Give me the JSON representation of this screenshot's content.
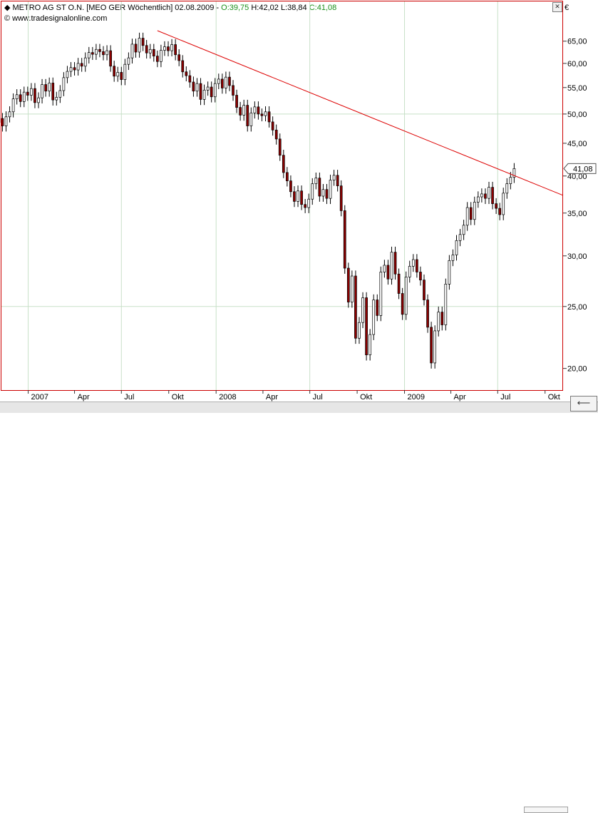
{
  "header": {
    "name_part": "METRO AG ST O.N. [MEO GER  Wöchentlich] 02.08.2009 - ",
    "open": "O:39,75",
    "high": "H:42,02",
    "low": "L:38,84",
    "close": "C:41,08"
  },
  "source": "www.tradesignalonline.com",
  "currency_symbol": "€",
  "last_price_label": "41,08",
  "colors": {
    "frame": "#cc0000",
    "trendline": "#dd0000",
    "grid": "#c8e0c8",
    "bear": "#8b0000",
    "bull": "#ffffff",
    "up_text": "#1a8f1a"
  },
  "chart_data": {
    "type": "candlestick",
    "interval": "weekly",
    "y_scale": "log",
    "ylim": [
      18.5,
      75
    ],
    "y_ticks": [
      20,
      25,
      30,
      35,
      40,
      45,
      50,
      55,
      60,
      65
    ],
    "y_tick_labels": [
      "20,00",
      "25,00",
      "30,00",
      "35,00",
      "40,00",
      "45,00",
      "50,00",
      "55,00",
      "60,00",
      "65,00"
    ],
    "x_ticks": [
      {
        "date": "2007-01-01",
        "label": "2007"
      },
      {
        "date": "2007-04-01",
        "label": "Apr"
      },
      {
        "date": "2007-07-01",
        "label": "Jul"
      },
      {
        "date": "2007-10-01",
        "label": "Okt"
      },
      {
        "date": "2008-01-01",
        "label": "2008"
      },
      {
        "date": "2008-04-01",
        "label": "Apr"
      },
      {
        "date": "2008-07-01",
        "label": "Jul"
      },
      {
        "date": "2008-10-01",
        "label": "Okt"
      },
      {
        "date": "2009-01-01",
        "label": "2009"
      },
      {
        "date": "2009-04-01",
        "label": "Apr"
      },
      {
        "date": "2009-07-01",
        "label": "Jul"
      },
      {
        "date": "2009-10-01",
        "label": "Okt"
      }
    ],
    "xlim": [
      "2006-11-10",
      "2009-11-05"
    ],
    "grid_vertical_at": [
      "2007-01-01",
      "2007-07-01",
      "2008-01-01",
      "2008-07-01",
      "2009-01-01",
      "2009-07-01"
    ],
    "grid_horizontal_at": [
      25,
      50
    ],
    "trendline": [
      {
        "date": "2007-09-09",
        "price": 67.5
      },
      {
        "date": "2009-11-05",
        "price": 37.3
      }
    ],
    "last_price": 41.08,
    "last_date": "2009-08-02",
    "closes": [
      46.5,
      47.8,
      48.5,
      49.2,
      47.9,
      49.5,
      50.4,
      52.8,
      53.6,
      52.3,
      54.1,
      53.5,
      54.8,
      52.1,
      53.0,
      55.6,
      54.3,
      55.9,
      52.6,
      53.1,
      54.4,
      57.0,
      58.3,
      59.1,
      58.6,
      60.0,
      59.4,
      61.2,
      62.4,
      62.0,
      63.1,
      62.6,
      61.9,
      62.8,
      59.4,
      57.3,
      58.1,
      56.6,
      59.8,
      61.2,
      64.3,
      62.5,
      65.7,
      64.0,
      62.3,
      63.1,
      61.6,
      60.4,
      62.9,
      63.7,
      62.8,
      64.2,
      61.9,
      60.6,
      58.2,
      57.4,
      56.1,
      54.3,
      55.8,
      52.7,
      54.5,
      55.1,
      53.2,
      55.8,
      56.7,
      54.9,
      57.1,
      55.4,
      53.5,
      51.2,
      49.8,
      51.6,
      47.9,
      50.2,
      51.3,
      50.0,
      49.7,
      50.4,
      48.6,
      47.2,
      45.7,
      43.1,
      40.5,
      39.3,
      37.8,
      36.5,
      37.9,
      36.1,
      35.7,
      36.8,
      38.9,
      39.7,
      37.2,
      38.1,
      36.9,
      39.4,
      40.1,
      38.6,
      35.3,
      28.7,
      25.4,
      27.9,
      22.3,
      23.6,
      25.8,
      21.0,
      22.6,
      25.6,
      24.2,
      28.3,
      29.0,
      27.6,
      30.4,
      28.1,
      26.2,
      24.3,
      27.8,
      28.9,
      29.6,
      28.3,
      27.5,
      25.6,
      23.2,
      20.4,
      22.9,
      24.5,
      23.4,
      27.1,
      29.5,
      30.1,
      31.7,
      32.4,
      33.5,
      35.7,
      34.2,
      36.4,
      37.1,
      37.5,
      36.9,
      38.4,
      36.2,
      35.6,
      34.8,
      37.6,
      38.9,
      39.8,
      41.08
    ]
  }
}
